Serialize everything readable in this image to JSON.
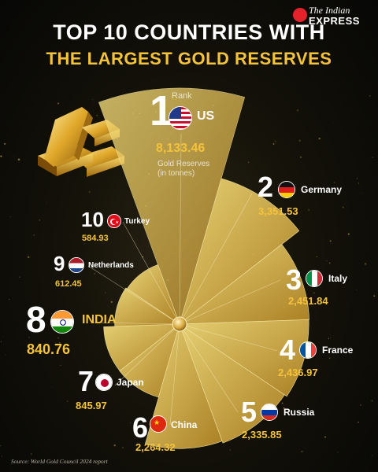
{
  "header": {
    "title_line1": "TOP 10 COUNTRIES WITH",
    "title_line2": "THE LARGEST GOLD RESERVES",
    "brand_line1": "The Indian",
    "brand_line2": "EXPRESS"
  },
  "labels": {
    "rank": "Rank",
    "gold_reserves": "Gold Reserves",
    "unit": "(in tonnes)"
  },
  "source": "Source: World Gold Council 2024 report",
  "colors": {
    "gold": "#f4c33b",
    "background": "#0b0a08",
    "accent": "#e3232b"
  },
  "chart_data": {
    "type": "polar-bar",
    "ylabel": "Gold Reserves (in tonnes)",
    "categories": [
      "US",
      "Germany",
      "Italy",
      "France",
      "Russia",
      "China",
      "Japan",
      "INDIA",
      "Netherlands",
      "Turkey"
    ],
    "ranks": [
      "1",
      "2",
      "3",
      "4",
      "5",
      "6",
      "7",
      "8",
      "9",
      "10"
    ],
    "value_labels": [
      "8,133.46",
      "3,351.53",
      "2,451.84",
      "2,436.97",
      "2,335.85",
      "2,264.32",
      "845.97",
      "840.76",
      "612.45",
      "584.93"
    ],
    "values": [
      8133.46,
      3351.53,
      2451.84,
      2436.97,
      2335.85,
      2264.32,
      845.97,
      840.76,
      612.45,
      584.93
    ]
  }
}
